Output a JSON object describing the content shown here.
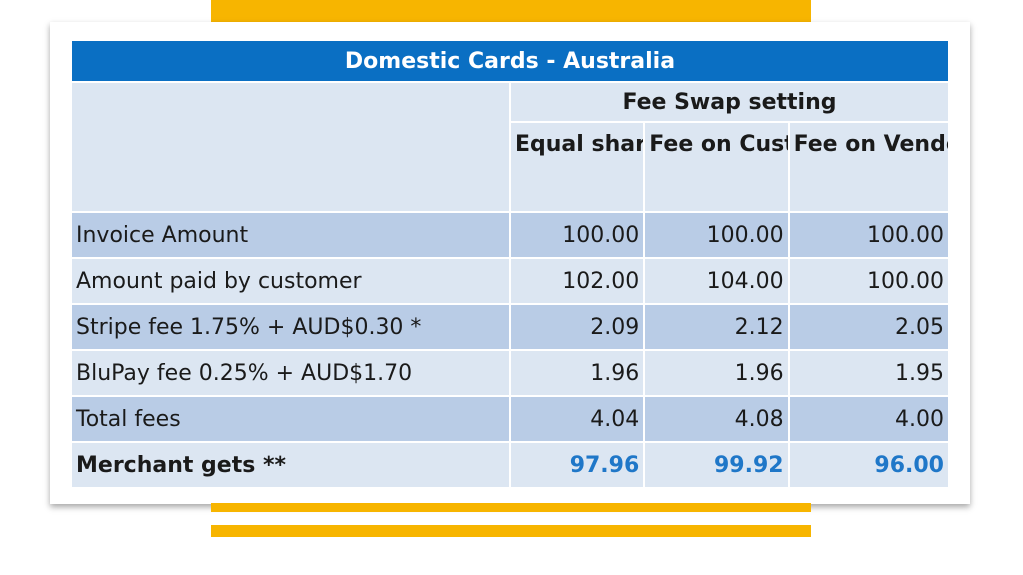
{
  "table": {
    "title": "Domestic Cards - Australia",
    "group_header": "Fee Swap setting",
    "columns": [
      "Equal sharing",
      "Fee on Customer",
      "Fee on Vendor"
    ],
    "rows": [
      {
        "label": "Invoice Amount",
        "values": [
          "100.00",
          "100.00",
          "100.00"
        ]
      },
      {
        "label": "Amount paid by customer",
        "values": [
          "102.00",
          "104.00",
          "100.00"
        ]
      },
      {
        "label": "Stripe fee 1.75% + AUD$0.30  *",
        "values": [
          "2.09",
          "2.12",
          "2.05"
        ]
      },
      {
        "label": "BluPay fee 0.25% + AUD$1.70",
        "values": [
          "1.96",
          "1.96",
          "1.95"
        ]
      },
      {
        "label": "Total fees",
        "values": [
          "4.04",
          "4.08",
          "4.00"
        ]
      },
      {
        "label": "Merchant gets **",
        "values": [
          "97.96",
          "99.92",
          "96.00"
        ]
      }
    ]
  },
  "colors": {
    "title_bg": "#0a6fc3",
    "row_dark": "#b9cce6",
    "row_light": "#dce6f2",
    "highlight_text": "#1f77c8",
    "accent_bar": "#f7b500"
  }
}
